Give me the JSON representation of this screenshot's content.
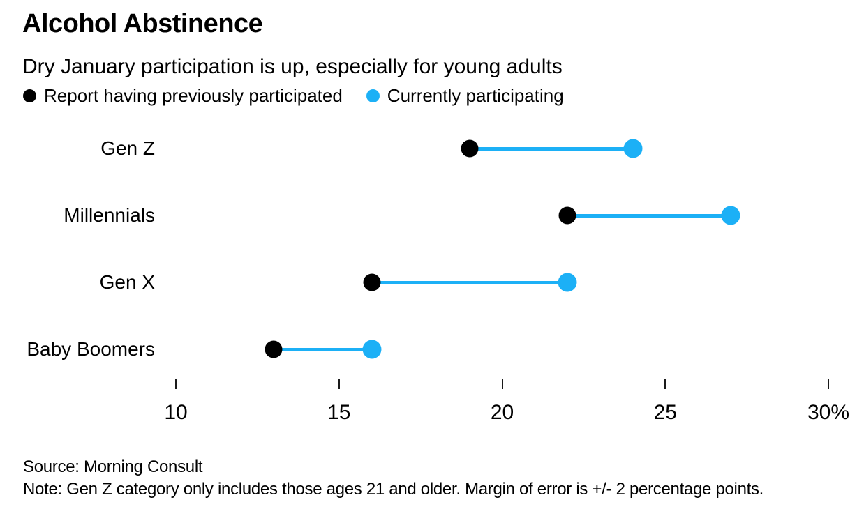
{
  "header": {
    "title": "Alcohol Abstinence",
    "subtitle": "Dry January participation is up, especially for young adults"
  },
  "legend": [
    {
      "label": "Report having previously participated",
      "color": "#000000"
    },
    {
      "label": "Currently participating",
      "color": "#1CB0F6"
    }
  ],
  "chart_data": {
    "type": "scatter",
    "variant": "dumbbell",
    "title": "Alcohol Abstinence",
    "subtitle": "Dry January participation is up, especially for young adults",
    "categories": [
      "Gen Z",
      "Millennials",
      "Gen X",
      "Baby Boomers"
    ],
    "series": [
      {
        "name": "Report having previously participated",
        "color": "#000000",
        "values": [
          19,
          22,
          16,
          13
        ]
      },
      {
        "name": "Currently participating",
        "color": "#1CB0F6",
        "values": [
          24,
          27,
          22,
          16
        ]
      }
    ],
    "connector_color": "#1CB0F6",
    "xlim": [
      10,
      30
    ],
    "x_ticks": [
      10,
      15,
      20,
      25,
      30
    ],
    "x_tick_labels": [
      "10",
      "15",
      "20",
      "25",
      "30%"
    ],
    "xlabel": "",
    "ylabel": "",
    "grid": false,
    "legend_position": "top-left",
    "unit": "percent"
  },
  "footer": {
    "source": "Source: Morning Consult",
    "note": "Note: Gen Z category only includes those ages 21 and older. Margin of error is +/- 2 percentage points."
  }
}
